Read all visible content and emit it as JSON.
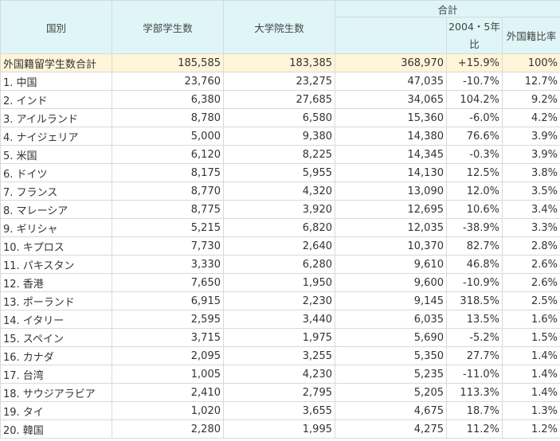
{
  "headers": {
    "country": "国別",
    "undergrad": "学部学生数",
    "grad": "大学院生数",
    "total_group": "合計",
    "change": "2004・5年比",
    "ratio": "外国籍比率"
  },
  "total_row": {
    "name": "外国籍留学生数合計",
    "undergrad": "185,585",
    "grad": "183,385",
    "total": "368,970",
    "change": "+15.9%",
    "ratio": "100%"
  },
  "rows": [
    {
      "name": "1. 中国",
      "undergrad": "23,760",
      "grad": "23,275",
      "total": "47,035",
      "change": "-10.7%",
      "ratio": "12.7%"
    },
    {
      "name": "2. インド",
      "undergrad": "6,380",
      "grad": "27,685",
      "total": "34,065",
      "change": "104.2%",
      "ratio": "9.2%"
    },
    {
      "name": "3. アイルランド",
      "undergrad": "8,780",
      "grad": "6,580",
      "total": "15,360",
      "change": "-6.0%",
      "ratio": "4.2%"
    },
    {
      "name": "4. ナイジェリア",
      "undergrad": "5,000",
      "grad": "9,380",
      "total": "14,380",
      "change": "76.6%",
      "ratio": "3.9%"
    },
    {
      "name": "5. 米国",
      "undergrad": "6,120",
      "grad": "8,225",
      "total": "14,345",
      "change": "-0.3%",
      "ratio": "3.9%"
    },
    {
      "name": "6. ドイツ",
      "undergrad": "8,175",
      "grad": "5,955",
      "total": "14,130",
      "change": "12.5%",
      "ratio": "3.8%"
    },
    {
      "name": "7. フランス",
      "undergrad": "8,770",
      "grad": "4,320",
      "total": "13,090",
      "change": "12.0%",
      "ratio": "3.5%"
    },
    {
      "name": "8. マレーシア",
      "undergrad": "8,775",
      "grad": "3,920",
      "total": "12,695",
      "change": "10.6%",
      "ratio": "3.4%"
    },
    {
      "name": "9. ギリシャ",
      "undergrad": "5,215",
      "grad": "6,820",
      "total": "12,035",
      "change": "-38.9%",
      "ratio": "3.3%"
    },
    {
      "name": "10. キプロス",
      "undergrad": "7,730",
      "grad": "2,640",
      "total": "10,370",
      "change": "82.7%",
      "ratio": "2.8%"
    },
    {
      "name": "11. パキスタン",
      "undergrad": "3,330",
      "grad": "6,280",
      "total": "9,610",
      "change": "46.8%",
      "ratio": "2.6%"
    },
    {
      "name": "12. 香港",
      "undergrad": "7,650",
      "grad": "1,950",
      "total": "9,600",
      "change": "-10.9%",
      "ratio": "2.6%"
    },
    {
      "name": "13. ポーランド",
      "undergrad": "6,915",
      "grad": "2,230",
      "total": "9,145",
      "change": "318.5%",
      "ratio": "2.5%"
    },
    {
      "name": "14. イタリー",
      "undergrad": "2,595",
      "grad": "3,440",
      "total": "6,035",
      "change": "13.5%",
      "ratio": "1.6%"
    },
    {
      "name": "15. スペイン",
      "undergrad": "3,715",
      "grad": "1,975",
      "total": "5,690",
      "change": "-5.2%",
      "ratio": "1.5%"
    },
    {
      "name": "16. カナダ",
      "undergrad": "2,095",
      "grad": "3,255",
      "total": "5,350",
      "change": "27.7%",
      "ratio": "1.4%"
    },
    {
      "name": "17. 台湾",
      "undergrad": "1,005",
      "grad": "4,230",
      "total": "5,235",
      "change": "-11.0%",
      "ratio": "1.4%"
    },
    {
      "name": "18. サウジアラビア",
      "undergrad": "2,410",
      "grad": "2,795",
      "total": "5,205",
      "change": "113.3%",
      "ratio": "1.4%"
    },
    {
      "name": "19. タイ",
      "undergrad": "1,020",
      "grad": "3,655",
      "total": "4,675",
      "change": "18.7%",
      "ratio": "1.3%"
    },
    {
      "name": "20. 韓国",
      "undergrad": "2,280",
      "grad": "1,995",
      "total": "4,275",
      "change": "11.2%",
      "ratio": "1.2%"
    }
  ]
}
